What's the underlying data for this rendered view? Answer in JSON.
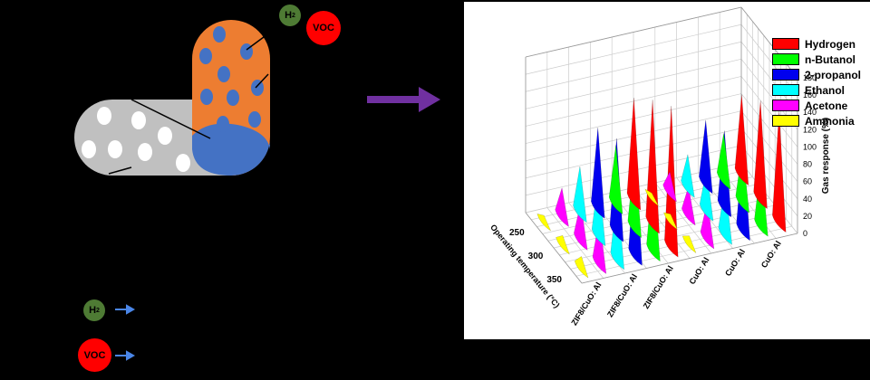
{
  "schematic": {
    "h2_text": "H",
    "h2_sub": "2",
    "voc_text": "VOC",
    "legend_h2_text": "H",
    "legend_h2_sub": "2",
    "legend_voc_text": "VOC",
    "colors": {
      "grey_particle": "#c0c0c0",
      "orange_particle": "#ed7d31",
      "pore": "#4472c4",
      "h2": "#4e7b34",
      "voc": "#ff0000",
      "arrow": "#4a86e8"
    }
  },
  "arrow_color": "#7030a0",
  "chart_data": {
    "type": "bar3d",
    "title": "",
    "zlabel": "Gas response (%)",
    "ylabel": "Operating temperature (°C)",
    "temperatures": [
      250,
      300,
      350
    ],
    "materials": [
      "CuO: Al",
      "ZIF8/CuO: Al"
    ],
    "material_tick_labels": [
      "CuO: Al",
      "CuO: Al",
      "CuO: Al",
      "ZIF8/CuO: Al",
      "ZIF8/CuO: Al",
      "ZIF8/CuO: Al"
    ],
    "zlim": [
      0,
      180
    ],
    "zticks": [
      0,
      20,
      40,
      60,
      80,
      100,
      120,
      140,
      160,
      180
    ],
    "temp_ticks": [
      "250",
      "300",
      "350"
    ],
    "grid": true,
    "legend_position": "top-right",
    "series": [
      {
        "name": "Hydrogen",
        "color": "#ff0000",
        "values": {
          "CuO: Al": [
            95,
            115,
            130
          ],
          "ZIF8/CuO: Al": [
            120,
            145,
            165
          ]
        }
      },
      {
        "name": "n-Butanol",
        "color": "#00ff00",
        "values": {
          "CuO: Al": [
            55,
            65,
            75
          ],
          "ZIF8/CuO: Al": [
            70,
            85,
            95
          ]
        }
      },
      {
        "name": "2-propanol",
        "color": "#0000ee",
        "values": {
          "CuO: Al": [
            75,
            90,
            100
          ],
          "ZIF8/CuO: Al": [
            95,
            110,
            115
          ]
        }
      },
      {
        "name": "Ethanol",
        "color": "#00ffff",
        "values": {
          "CuO: Al": [
            40,
            50,
            60
          ],
          "ZIF8/CuO: Al": [
            55,
            70,
            80
          ]
        }
      },
      {
        "name": "Acetone",
        "color": "#ff00ff",
        "values": {
          "CuO: Al": [
            25,
            35,
            45
          ],
          "ZIF8/CuO: Al": [
            35,
            45,
            55
          ]
        }
      },
      {
        "name": "Ammonia",
        "color": "#ffff00",
        "values": {
          "CuO: Al": [
            5,
            8,
            10
          ],
          "ZIF8/CuO: Al": [
            8,
            12,
            15
          ]
        }
      }
    ]
  }
}
